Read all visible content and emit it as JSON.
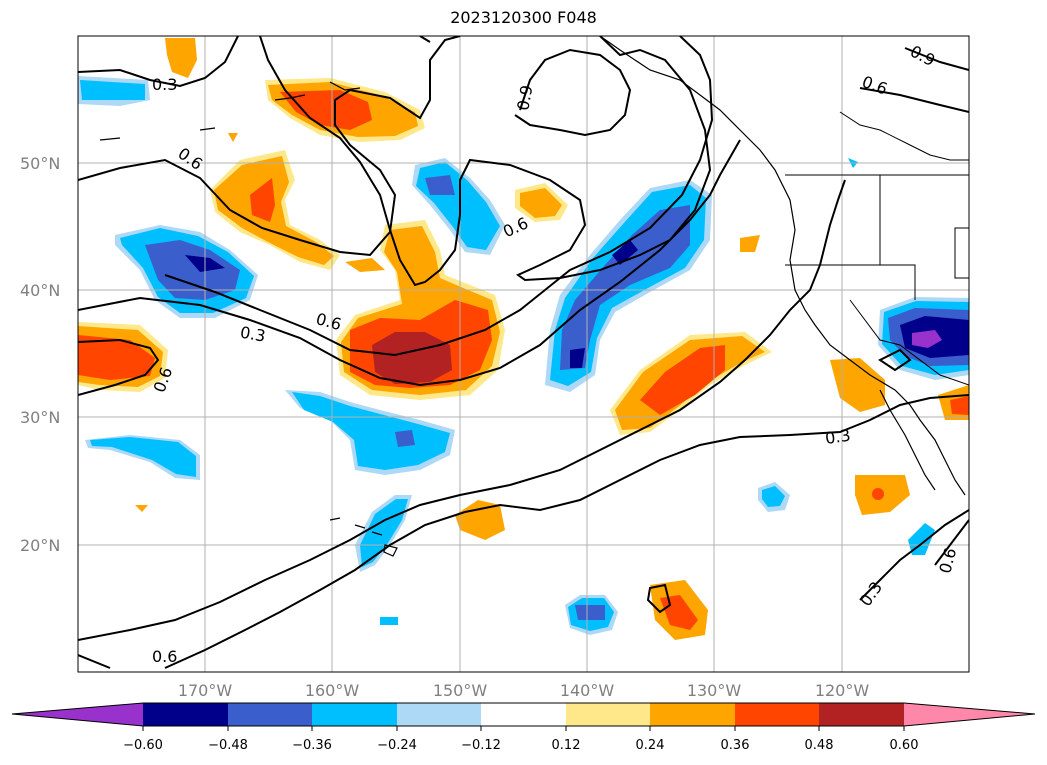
{
  "title": "2023120300 F048",
  "map": {
    "lat_labels": [
      "50°N",
      "40°N",
      "30°N",
      "20°N"
    ],
    "lon_labels": [
      "170°W",
      "160°W",
      "150°W",
      "140°W",
      "130°W",
      "120°W"
    ],
    "contour_labels": [
      "0.3",
      "0.6",
      "0.9",
      "0.6",
      "0.6",
      "0.3",
      "0.6",
      "0.3",
      "0.3",
      "0.6",
      "0.6",
      "0.3",
      "0.6",
      "0.9"
    ],
    "grid": true
  },
  "colorbar": {
    "tick_labels": [
      "−0.60",
      "−0.48",
      "−0.36",
      "−0.24",
      "−0.12",
      "0.12",
      "0.24",
      "0.36",
      "0.48",
      "0.60"
    ],
    "colors": [
      "#9932CC",
      "#00008B",
      "#3A5FCD",
      "#00BFFF",
      "#ADD8F6",
      "#FFFFFF",
      "#FFE889",
      "#FFA500",
      "#FF4500",
      "#B22222",
      "#FF88AA"
    ]
  }
}
